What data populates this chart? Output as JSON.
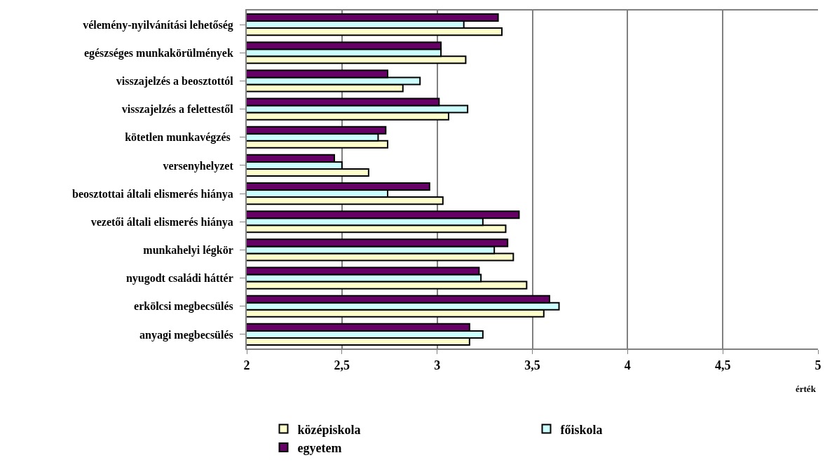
{
  "chart_data": {
    "type": "bar",
    "orientation": "horizontal",
    "xlabel": "érték",
    "categories": [
      "vélemény-nyilvánítási lehetőség",
      "egészséges munkakörülmények",
      "visszajelzés a beosztottól",
      "visszajelzés a felettestől",
      "kötetlen munkavégzés ",
      "versenyhelyzet",
      "beosztottai általi elismerés hiánya",
      "vezetői általi elismerés hiánya",
      "munkahelyi légkör",
      "nyugodt családi háttér",
      "erkölcsi megbecsülés",
      "anyagi megbecsülés"
    ],
    "series": [
      {
        "name": "középiskola",
        "color": "#ffffcc",
        "values": [
          3.34,
          3.15,
          2.82,
          3.06,
          2.74,
          2.64,
          3.03,
          3.36,
          3.4,
          3.47,
          3.56,
          3.17
        ]
      },
      {
        "name": "főiskola",
        "color": "#ccffff",
        "values": [
          3.14,
          3.02,
          2.91,
          3.16,
          2.69,
          2.5,
          2.74,
          3.24,
          3.3,
          3.23,
          3.64,
          3.24
        ]
      },
      {
        "name": "egyetem",
        "color": "#660066",
        "values": [
          3.32,
          3.02,
          2.74,
          3.01,
          2.73,
          2.46,
          2.96,
          3.43,
          3.37,
          3.22,
          3.59,
          3.17
        ]
      }
    ],
    "xlim": [
      2,
      5
    ],
    "xticks": [
      2,
      {
        "value": 2.5,
        "label": "2,5"
      },
      3,
      {
        "value": 3.5,
        "label": "3,5"
      },
      4,
      {
        "value": 4.5,
        "label": "4,5"
      },
      5
    ],
    "grid": "x",
    "legend": "bottom"
  }
}
